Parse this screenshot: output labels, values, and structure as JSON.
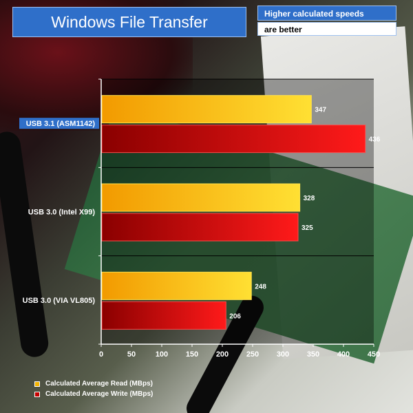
{
  "header": {
    "title": "Windows File Transfer",
    "note_line1": "Higher calculated speeds",
    "note_line2": "are better"
  },
  "colors": {
    "title_bg": "#2f6fc9",
    "read_light": "#ffe033",
    "read_dark": "#f29a00",
    "write_light": "#ff1a1a",
    "write_dark": "#8a0000"
  },
  "chart_data": {
    "type": "bar",
    "orientation": "horizontal",
    "categories": [
      "USB 3.1 (ASM1142)",
      "USB 3.0 (Intel X99)",
      "USB 3.0 (VIA VL805)"
    ],
    "highlighted_category": "USB 3.1 (ASM1142)",
    "series": [
      {
        "name": "Calculated Average Read (MBps)",
        "values": [
          347,
          328,
          248
        ]
      },
      {
        "name": "Calculated Average Write (MBps)",
        "values": [
          436,
          325,
          206
        ]
      }
    ],
    "xlim": [
      0,
      450
    ],
    "xticks": [
      "0",
      "50",
      "100",
      "150",
      "200",
      "250",
      "300",
      "350",
      "400",
      "450"
    ],
    "legend_position": "bottom-left",
    "grid": false
  }
}
